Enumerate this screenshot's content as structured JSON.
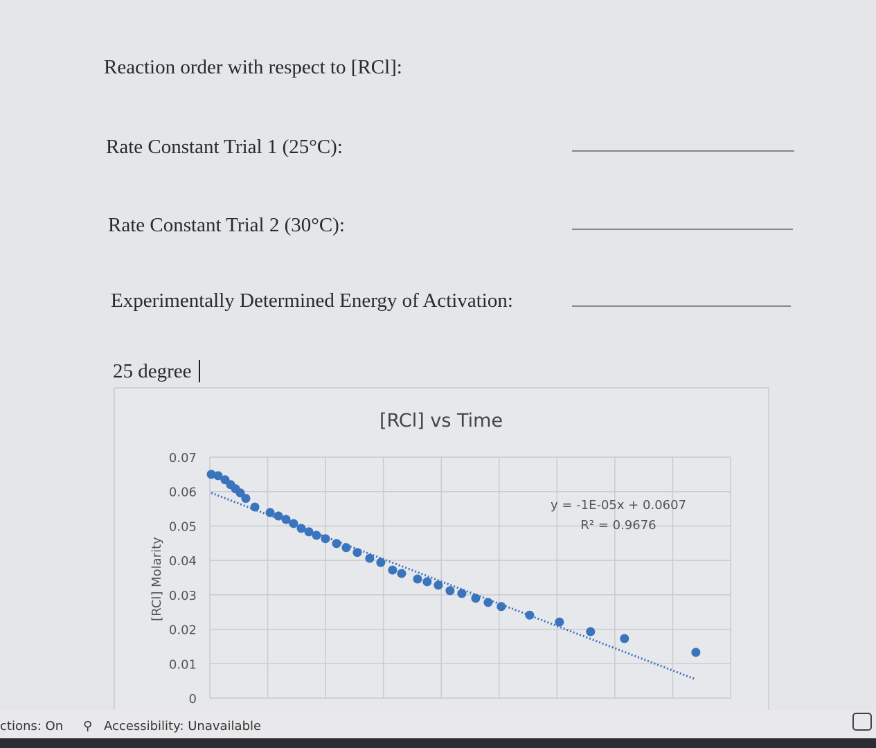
{
  "document": {
    "lines": [
      "Reaction order with respect to [RCl]:",
      "Rate Constant Trial 1 (25°C):",
      "Rate Constant Trial 2 (30°C):",
      "Experimentally Determined Energy of Activation:"
    ],
    "typed": "25 degree"
  },
  "status_bar": {
    "left": "ctions: On",
    "accessibility": "Accessibility: Unavailable"
  },
  "chart_data": {
    "type": "scatter",
    "title": "[RCl] vs Time",
    "y_label": "[RCl] Molarity",
    "annotations": [
      "y = -1E-05x + 0.0607",
      "R² = 0.9676"
    ],
    "color": "#3a74bd",
    "grid": true,
    "xlim": [
      0,
      5400
    ],
    "ylim": [
      0,
      0.07
    ],
    "yticks": [
      0,
      0.01,
      0.02,
      0.03,
      0.04,
      0.05,
      0.06,
      0.07
    ],
    "x": [
      15,
      86,
      158,
      215,
      266,
      316,
      373,
      467,
      625,
      711,
      790,
      869,
      948,
      1027,
      1106,
      1199,
      1314,
      1414,
      1529,
      1658,
      1773,
      1895,
      1989,
      2154,
      2254,
      2369,
      2491,
      2613,
      2757,
      2886,
      3022,
      3317,
      3625,
      3948,
      4300,
      5040
    ],
    "values": [
      0.065,
      0.0646,
      0.0634,
      0.062,
      0.0608,
      0.0596,
      0.058,
      0.0555,
      0.0539,
      0.0529,
      0.0519,
      0.0507,
      0.0493,
      0.0483,
      0.0473,
      0.0463,
      0.0449,
      0.0437,
      0.0423,
      0.0406,
      0.0394,
      0.0372,
      0.0362,
      0.0346,
      0.0338,
      0.0328,
      0.0312,
      0.0304,
      0.029,
      0.0278,
      0.0266,
      0.0241,
      0.0221,
      0.0193,
      0.0173,
      0.0133
    ],
    "trendline": {
      "x": [
        15,
        5025
      ],
      "values": [
        0.0596,
        0.0056
      ]
    }
  }
}
